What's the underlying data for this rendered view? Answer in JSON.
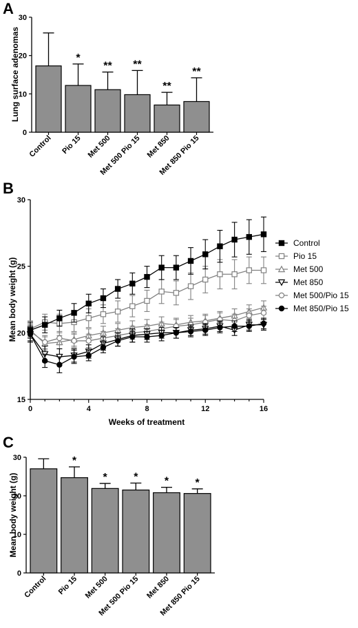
{
  "chart_data": [
    {
      "panel": "A",
      "type": "bar",
      "ylabel": "Lung surface adenomas",
      "xlabel": "",
      "ylim": [
        0,
        30
      ],
      "yticks": [
        0,
        10,
        20,
        30
      ],
      "categories": [
        "Control",
        "Pio 15",
        "Met 500",
        "Met 500 Pio 15",
        "Met 850",
        "Met 850 Pio 15"
      ],
      "values": [
        17.3,
        12.2,
        11.1,
        9.8,
        7.1,
        8.0
      ],
      "errors": [
        8.6,
        5.6,
        4.6,
        6.3,
        3.3,
        6.2
      ],
      "significance": [
        "",
        "*",
        "**",
        "**",
        "**",
        "**"
      ],
      "bar_color": "#8f8f8f"
    },
    {
      "panel": "B",
      "type": "line",
      "xlabel": "Weeks of treatment",
      "ylabel": "Mean body weight (g)",
      "xlim": [
        0,
        16
      ],
      "ylim": [
        15,
        30
      ],
      "xticks": [
        0,
        4,
        8,
        12,
        16
      ],
      "yticks": [
        15,
        20,
        25,
        30
      ],
      "legend_position": "right",
      "x": [
        0,
        1,
        2,
        3,
        4,
        5,
        6,
        7,
        8,
        9,
        10,
        11,
        12,
        13,
        14,
        15,
        16
      ],
      "series": [
        {
          "name": "Control",
          "marker": "filled-square",
          "color": "#000000",
          "values": [
            20.2,
            20.6,
            21.1,
            21.5,
            22.2,
            22.6,
            23.3,
            23.7,
            24.2,
            24.9,
            24.9,
            25.4,
            25.9,
            26.5,
            27.0,
            27.2,
            27.4
          ],
          "errors": [
            0.6,
            0.6,
            0.6,
            0.7,
            0.7,
            0.7,
            0.7,
            0.8,
            0.8,
            0.9,
            0.9,
            1.0,
            1.1,
            1.2,
            1.3,
            1.3,
            1.3
          ]
        },
        {
          "name": "Pio 15",
          "marker": "open-square",
          "color": "#808080",
          "values": [
            20.3,
            20.8,
            20.7,
            20.8,
            21.1,
            21.4,
            21.6,
            22.0,
            22.4,
            23.1,
            23.0,
            23.5,
            24.0,
            24.4,
            24.4,
            24.7,
            24.7
          ],
          "errors": [
            0.6,
            0.6,
            0.7,
            0.7,
            0.7,
            0.7,
            0.8,
            0.8,
            0.8,
            0.9,
            0.9,
            1.0,
            1.0,
            1.1,
            1.1,
            1.0,
            1.0
          ]
        },
        {
          "name": "Met 500",
          "marker": "open-triangle-up",
          "color": "#808080",
          "values": [
            20.2,
            19.2,
            19.3,
            19.5,
            19.8,
            20.0,
            20.2,
            20.4,
            20.5,
            20.7,
            20.6,
            20.8,
            20.9,
            21.1,
            21.3,
            21.6,
            21.9
          ],
          "errors": [
            0.5,
            0.5,
            0.5,
            0.5,
            0.5,
            0.5,
            0.5,
            0.5,
            0.5,
            0.5,
            0.5,
            0.5,
            0.5,
            0.5,
            0.5,
            0.5,
            0.5
          ]
        },
        {
          "name": "Met 850",
          "marker": "open-triangle-down",
          "color": "#000000",
          "values": [
            19.9,
            18.4,
            18.2,
            18.3,
            18.6,
            19.2,
            19.5,
            19.8,
            19.9,
            20.0,
            20.0,
            20.2,
            20.3,
            20.5,
            20.2,
            20.6,
            20.6
          ],
          "errors": [
            0.5,
            0.6,
            0.6,
            0.5,
            0.5,
            0.5,
            0.5,
            0.5,
            0.4,
            0.4,
            0.4,
            0.4,
            0.4,
            0.4,
            0.4,
            0.4,
            0.4
          ]
        },
        {
          "name": "Met 500/Pio 15",
          "marker": "open-circle",
          "color": "#808080",
          "values": [
            20.1,
            19.3,
            19.6,
            19.4,
            19.4,
            19.6,
            19.8,
            20.0,
            20.1,
            20.3,
            20.5,
            20.6,
            20.8,
            21.0,
            20.9,
            21.3,
            21.5
          ],
          "errors": [
            0.5,
            0.5,
            0.5,
            0.5,
            0.5,
            0.5,
            0.5,
            0.5,
            0.5,
            0.5,
            0.5,
            0.5,
            0.5,
            0.5,
            0.5,
            0.5,
            0.5
          ]
        },
        {
          "name": "Met 850/Pio 15",
          "marker": "filled-circle",
          "color": "#000000",
          "values": [
            19.9,
            17.9,
            17.6,
            18.2,
            18.3,
            18.9,
            19.4,
            19.7,
            19.7,
            19.8,
            20.0,
            20.1,
            20.2,
            20.4,
            20.5,
            20.5,
            20.7
          ],
          "errors": [
            0.6,
            0.5,
            0.6,
            0.5,
            0.4,
            0.4,
            0.4,
            0.4,
            0.4,
            0.4,
            0.4,
            0.4,
            0.4,
            0.4,
            0.4,
            0.4,
            0.4
          ]
        }
      ]
    },
    {
      "panel": "C",
      "type": "bar",
      "ylabel": "Mean body weight (g)",
      "xlabel": "",
      "ylim": [
        0,
        30
      ],
      "yticks": [
        0,
        10,
        20,
        30
      ],
      "categories": [
        "Control",
        "Pio 15",
        "Met 500",
        "Met 500 Pio 15",
        "Met 850",
        "Met 850 Pio 15"
      ],
      "values": [
        27.0,
        24.7,
        21.9,
        21.5,
        20.8,
        20.6
      ],
      "errors": [
        2.6,
        2.8,
        1.3,
        1.8,
        1.4,
        1.2
      ],
      "significance": [
        "",
        "*",
        "*",
        "*",
        "*",
        "*"
      ],
      "bar_color": "#8f8f8f"
    }
  ]
}
